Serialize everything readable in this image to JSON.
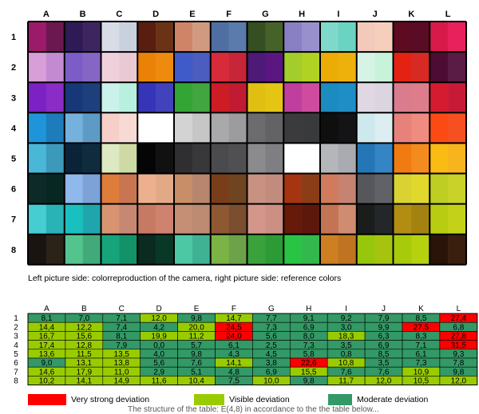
{
  "chart_data": [
    {
      "type": "heatmap",
      "title": "",
      "columns": [
        "A",
        "B",
        "C",
        "D",
        "E",
        "F",
        "G",
        "H",
        "I",
        "J",
        "K",
        "L"
      ],
      "rows": [
        "1",
        "2",
        "3",
        "4",
        "5",
        "6",
        "7",
        "8"
      ],
      "camera_colors": [
        [
          "#9b1a6a",
          "#2e1a55",
          "#d8dde5",
          "#5a1e10",
          "#cf8468",
          "#4f6fa3",
          "#354f22",
          "#8880c3",
          "#7fd9cb",
          "#f2c9ba",
          "#5e0a20",
          "#d81a4a"
        ],
        [
          "#d79ed8",
          "#7c5cc7",
          "#f0d1db",
          "#ea8208",
          "#3f5ac9",
          "#d72b3a",
          "#4d1a78",
          "#a3cd2a",
          "#ecac06",
          "#d5f4e6",
          "#e32214",
          "#4c0c34"
        ],
        [
          "#7c21c3",
          "#173878",
          "#caf1ea",
          "#3635b7",
          "#32a534",
          "#cd1c24",
          "#e1bf12",
          "#bf3e9e",
          "#1b8bc0",
          "#dfd8e2",
          "#da7c8e",
          "#d41c31"
        ],
        [
          "#1f95d9",
          "#74b1dc",
          "#f6cfc8",
          "#ffffff",
          "#d3d3d4",
          "#a9a9ab",
          "#6c6c6e",
          "#3b3b3d",
          "#0f0f10",
          "#cde9ee",
          "#e7827a",
          "#fb4a13"
        ],
        [
          "#4ab6d8",
          "#0b2338",
          "#dce9c1",
          "#050505",
          "#2f2f31",
          "#4b4b4d",
          "#8b8b8e",
          "#ffffff",
          "#b4b6ba",
          "#2576b7",
          "#f07b11",
          "#f9bb14"
        ],
        [
          "#0e2a28",
          "#8fb8ec",
          "#de7c3a",
          "#edb08f",
          "#c88e68",
          "#7a3d1a",
          "#c89182",
          "#a43510",
          "#d07c5c",
          "#55575b",
          "#d9d232",
          "#bfce22"
        ],
        [
          "#45cdd2",
          "#19c0c0",
          "#d89470",
          "#c67a63",
          "#c48f74",
          "#8d5832",
          "#d4968a",
          "#661a0a",
          "#c27454",
          "#1a1d1c",
          "#b18d12",
          "#b8cd12"
        ],
        [
          "#1a1410",
          "#54c48e",
          "#18a47a",
          "#0b2a20",
          "#4cc9a4",
          "#7bb345",
          "#3aa23b",
          "#2ac445",
          "#cd7f22",
          "#96c70d",
          "#a7cb0b",
          "#2a1309"
        ]
      ],
      "reference_colors": [
        [
          "#6b1850",
          "#3d2660",
          "#c9d0de",
          "#6b3315",
          "#d09a80",
          "#5a7bab",
          "#466229",
          "#9790cd",
          "#6ad3c1",
          "#f6cfbc",
          "#5a0c26",
          "#e8205c"
        ],
        [
          "#c38ad2",
          "#8566c5",
          "#e9c9d3",
          "#ee8a0e",
          "#4b5dbf",
          "#c62638",
          "#5a1781",
          "#b0d222",
          "#eeb10c",
          "#c7f3da",
          "#d72a24",
          "#5a1b45"
        ],
        [
          "#8a2cc5",
          "#1d3f7c",
          "#b9efdf",
          "#4242bc",
          "#41a540",
          "#c01b32",
          "#e5c513",
          "#cd4ca0",
          "#1f8ec7",
          "#dad5df",
          "#dd7d8b",
          "#c71a36"
        ],
        [
          "#1d7cb9",
          "#5d9ac5",
          "#f8dad5",
          "#ffffff",
          "#c6c6c7",
          "#9c9c9e",
          "#636366",
          "#393a3c",
          "#141416",
          "#ddedf2",
          "#f08b7f",
          "#f64f20"
        ],
        [
          "#3c99ba",
          "#0f2c3e",
          "#ced9a4",
          "#111111",
          "#38383b",
          "#505053",
          "#7f7f83",
          "#ffffff",
          "#a9abb0",
          "#3584c4",
          "#f48b1e",
          "#f7b41c"
        ],
        [
          "#072723",
          "#7da2d8",
          "#c87651",
          "#e2a986",
          "#b8866e",
          "#6e4520",
          "#c18c7e",
          "#8a3d17",
          "#c68372",
          "#606267",
          "#e0d82c",
          "#c9d228"
        ],
        [
          "#2ab3b7",
          "#1fa6ad",
          "#c68873",
          "#cf8270",
          "#bd8a72",
          "#7a4e2e",
          "#cb8f83",
          "#5d180c",
          "#d08c70",
          "#24272a",
          "#a38210",
          "#c3d218"
        ],
        [
          "#2b2318",
          "#42a97a",
          "#149267",
          "#093926",
          "#3fb293",
          "#6da24b",
          "#2c9b35",
          "#32b84c",
          "#c07320",
          "#a6c40d",
          "#b6d20f",
          "#3a1f0f"
        ]
      ],
      "caption": "Left picture side: colorreproduction of the camera, right picture side: reference colors"
    },
    {
      "type": "table",
      "columns": [
        "A",
        "B",
        "C",
        "D",
        "E",
        "F",
        "G",
        "H",
        "I",
        "J",
        "K",
        "L"
      ],
      "rows": [
        "1",
        "2",
        "3",
        "4",
        "5",
        "6",
        "7",
        "8"
      ],
      "values": [
        [
          "8,1",
          "7,0",
          "7,1",
          "12,0",
          "9,8",
          "14,7",
          "7,7",
          "9,1",
          "9,2",
          "7,9",
          "8,5",
          "27,4"
        ],
        [
          "14,4",
          "12,2",
          "7,4",
          "4,2",
          "20,0",
          "24,5",
          "7,3",
          "6,9",
          "3,0",
          "9,9",
          "27,5",
          "6,8"
        ],
        [
          "16,7",
          "15,6",
          "8,1",
          "19,9",
          "11,2",
          "24,0",
          "5,6",
          "8,0",
          "18,3",
          "6,3",
          "8,3",
          "27,8"
        ],
        [
          "17,4",
          "12,8",
          "7,9",
          "0,0",
          "5,7",
          "6,1",
          "2,5",
          "7,3",
          "3,5",
          "6,9",
          "7,1",
          "31,5"
        ],
        [
          "13,6",
          "11,5",
          "13,5",
          "4,0",
          "9,8",
          "4,3",
          "4,5",
          "5,8",
          "0,8",
          "8,5",
          "6,1",
          "9,3"
        ],
        [
          "9,0",
          "13,1",
          "13,8",
          "5,6",
          "7,6",
          "14,1",
          "3,8",
          "22,6",
          "10,8",
          "3,5",
          "7,3",
          "7,8"
        ],
        [
          "14,6",
          "17,9",
          "11,0",
          "2,9",
          "5,1",
          "4,8",
          "6,9",
          "15,5",
          "7,6",
          "7,6",
          "10,9",
          "9,8"
        ],
        [
          "10,2",
          "14,1",
          "14,9",
          "11,6",
          "10,4",
          "7,5",
          "10,0",
          "9,8",
          "11,7",
          "12,0",
          "10,5",
          "12,0"
        ]
      ],
      "categories": [
        [
          "m",
          "m",
          "m",
          "v",
          "m",
          "v",
          "m",
          "m",
          "m",
          "m",
          "m",
          "s"
        ],
        [
          "v",
          "v",
          "m",
          "m",
          "v",
          "s",
          "m",
          "m",
          "m",
          "m",
          "s",
          "m"
        ],
        [
          "v",
          "v",
          "m",
          "v",
          "v",
          "s",
          "m",
          "m",
          "v",
          "m",
          "m",
          "s"
        ],
        [
          "v",
          "v",
          "m",
          "m",
          "m",
          "m",
          "m",
          "m",
          "m",
          "m",
          "m",
          "s"
        ],
        [
          "v",
          "v",
          "v",
          "m",
          "m",
          "m",
          "m",
          "m",
          "m",
          "m",
          "m",
          "m"
        ],
        [
          "m",
          "v",
          "v",
          "m",
          "m",
          "v",
          "m",
          "s",
          "v",
          "m",
          "m",
          "m"
        ],
        [
          "v",
          "v",
          "v",
          "m",
          "m",
          "m",
          "m",
          "v",
          "m",
          "m",
          "v",
          "m"
        ],
        [
          "v",
          "v",
          "v",
          "v",
          "v",
          "m",
          "v",
          "m",
          "v",
          "v",
          "v",
          "v"
        ]
      ],
      "category_colors": {
        "s": "#ff0000",
        "v": "#99cc00",
        "m": "#339966"
      },
      "legend": [
        {
          "key": "s",
          "label": "Very strong deviation",
          "color": "#ff0000"
        },
        {
          "key": "v",
          "label": "Visible deviation",
          "color": "#99cc00"
        },
        {
          "key": "m",
          "label": "Moderate deviation",
          "color": "#339966"
        }
      ]
    }
  ],
  "footer_cutoff": "The structure of the table: E(4,8) in accordance to the the table below..."
}
